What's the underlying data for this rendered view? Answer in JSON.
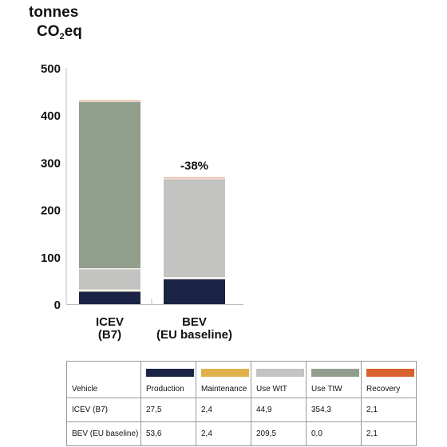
{
  "unit_label": {
    "line1": "tonnes",
    "line2_pre": "CO",
    "line2_sub": "2",
    "line2_post": "eq"
  },
  "chart_data": {
    "type": "bar",
    "stacked": true,
    "categories": [
      {
        "line1": "ICEV",
        "line2": "(B7)"
      },
      {
        "line1": "BEV",
        "line2": "(EU baseline)"
      }
    ],
    "series": [
      {
        "name": "Production",
        "color": "#1b2445",
        "values": [
          27.5,
          53.6
        ]
      },
      {
        "name": "Maintenance",
        "color": "#e0b14a",
        "values": [
          2.4,
          2.4
        ]
      },
      {
        "name": "Use WtT",
        "color": "#c3c4c2",
        "values": [
          44.9,
          209.5
        ]
      },
      {
        "name": "Use TtW",
        "color": "#919e8c",
        "values": [
          354.3,
          0.0
        ]
      },
      {
        "name": "Recovery",
        "color": "#d8612e",
        "values": [
          2.1,
          2.1
        ]
      }
    ],
    "ylim": [
      0,
      500
    ],
    "yticks": [
      0,
      100,
      200,
      300,
      400,
      500
    ],
    "annotation": {
      "category_index": 1,
      "text": "-38%"
    },
    "grid": false
  },
  "table": {
    "header_label": "Vehicle",
    "rows": [
      {
        "label": "ICEV (B7)",
        "values": [
          "27,5",
          "2,4",
          "44,9",
          "354,3",
          "2,1"
        ]
      },
      {
        "label": "BEV (EU baseline)",
        "values": [
          "53,6",
          "2,4",
          "209,5",
          "0,0",
          "2,1"
        ]
      }
    ]
  }
}
